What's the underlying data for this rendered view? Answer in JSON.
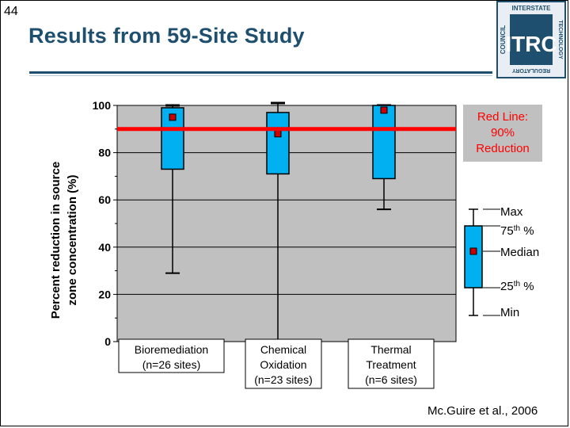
{
  "slide": {
    "number": "44",
    "title": "Results from 59-Site Study",
    "credit": "Mc.Guire et al., 2006"
  },
  "logo": {
    "letters": "ITRC",
    "ring_top": "INTERSTATE",
    "ring_right": "TECHNOLOGY",
    "ring_left": "COUNCIL",
    "ring_bottom": "REGULATORY"
  },
  "chart_data": {
    "type": "box",
    "ylabel_line1": "Percent reduction in source",
    "ylabel_line2": "zone concentration (%)",
    "ylim": [
      0,
      100
    ],
    "yticks": [
      0,
      20,
      40,
      60,
      80,
      100
    ],
    "grid": true,
    "reference_line": {
      "value": 90,
      "label_lines": [
        "Red Line:",
        "90%",
        "Reduction"
      ],
      "color": "#ff0000"
    },
    "categories": [
      {
        "label_lines": [
          "Bioremediation",
          "(n=26 sites)"
        ],
        "min": 29,
        "q1": 73,
        "median": 95,
        "q3": 99,
        "max": 100
      },
      {
        "label_lines": [
          "Chemical",
          "Oxidation",
          "(n=23 sites)"
        ],
        "min": 0,
        "q1": 71,
        "median": 88,
        "q3": 97,
        "max": 101
      },
      {
        "label_lines": [
          "Thermal",
          "Treatment",
          "(n=6 sites)"
        ],
        "min": 56,
        "q1": 69,
        "median": 98,
        "q3": 100,
        "max": 100
      }
    ],
    "legend": {
      "placement": "right",
      "max": "Max",
      "q3_prefix": "75",
      "q3_sup": "th",
      "q3_suffix": " %",
      "median": "Median",
      "q1_prefix": "25",
      "q1_sup": "th",
      "q1_suffix": " %",
      "min": "Min"
    },
    "colors": {
      "plot_bg": "#c0c0c0",
      "box_fill": "#00b0f0",
      "median_marker": "#cc0000",
      "grid": "#000000"
    }
  }
}
